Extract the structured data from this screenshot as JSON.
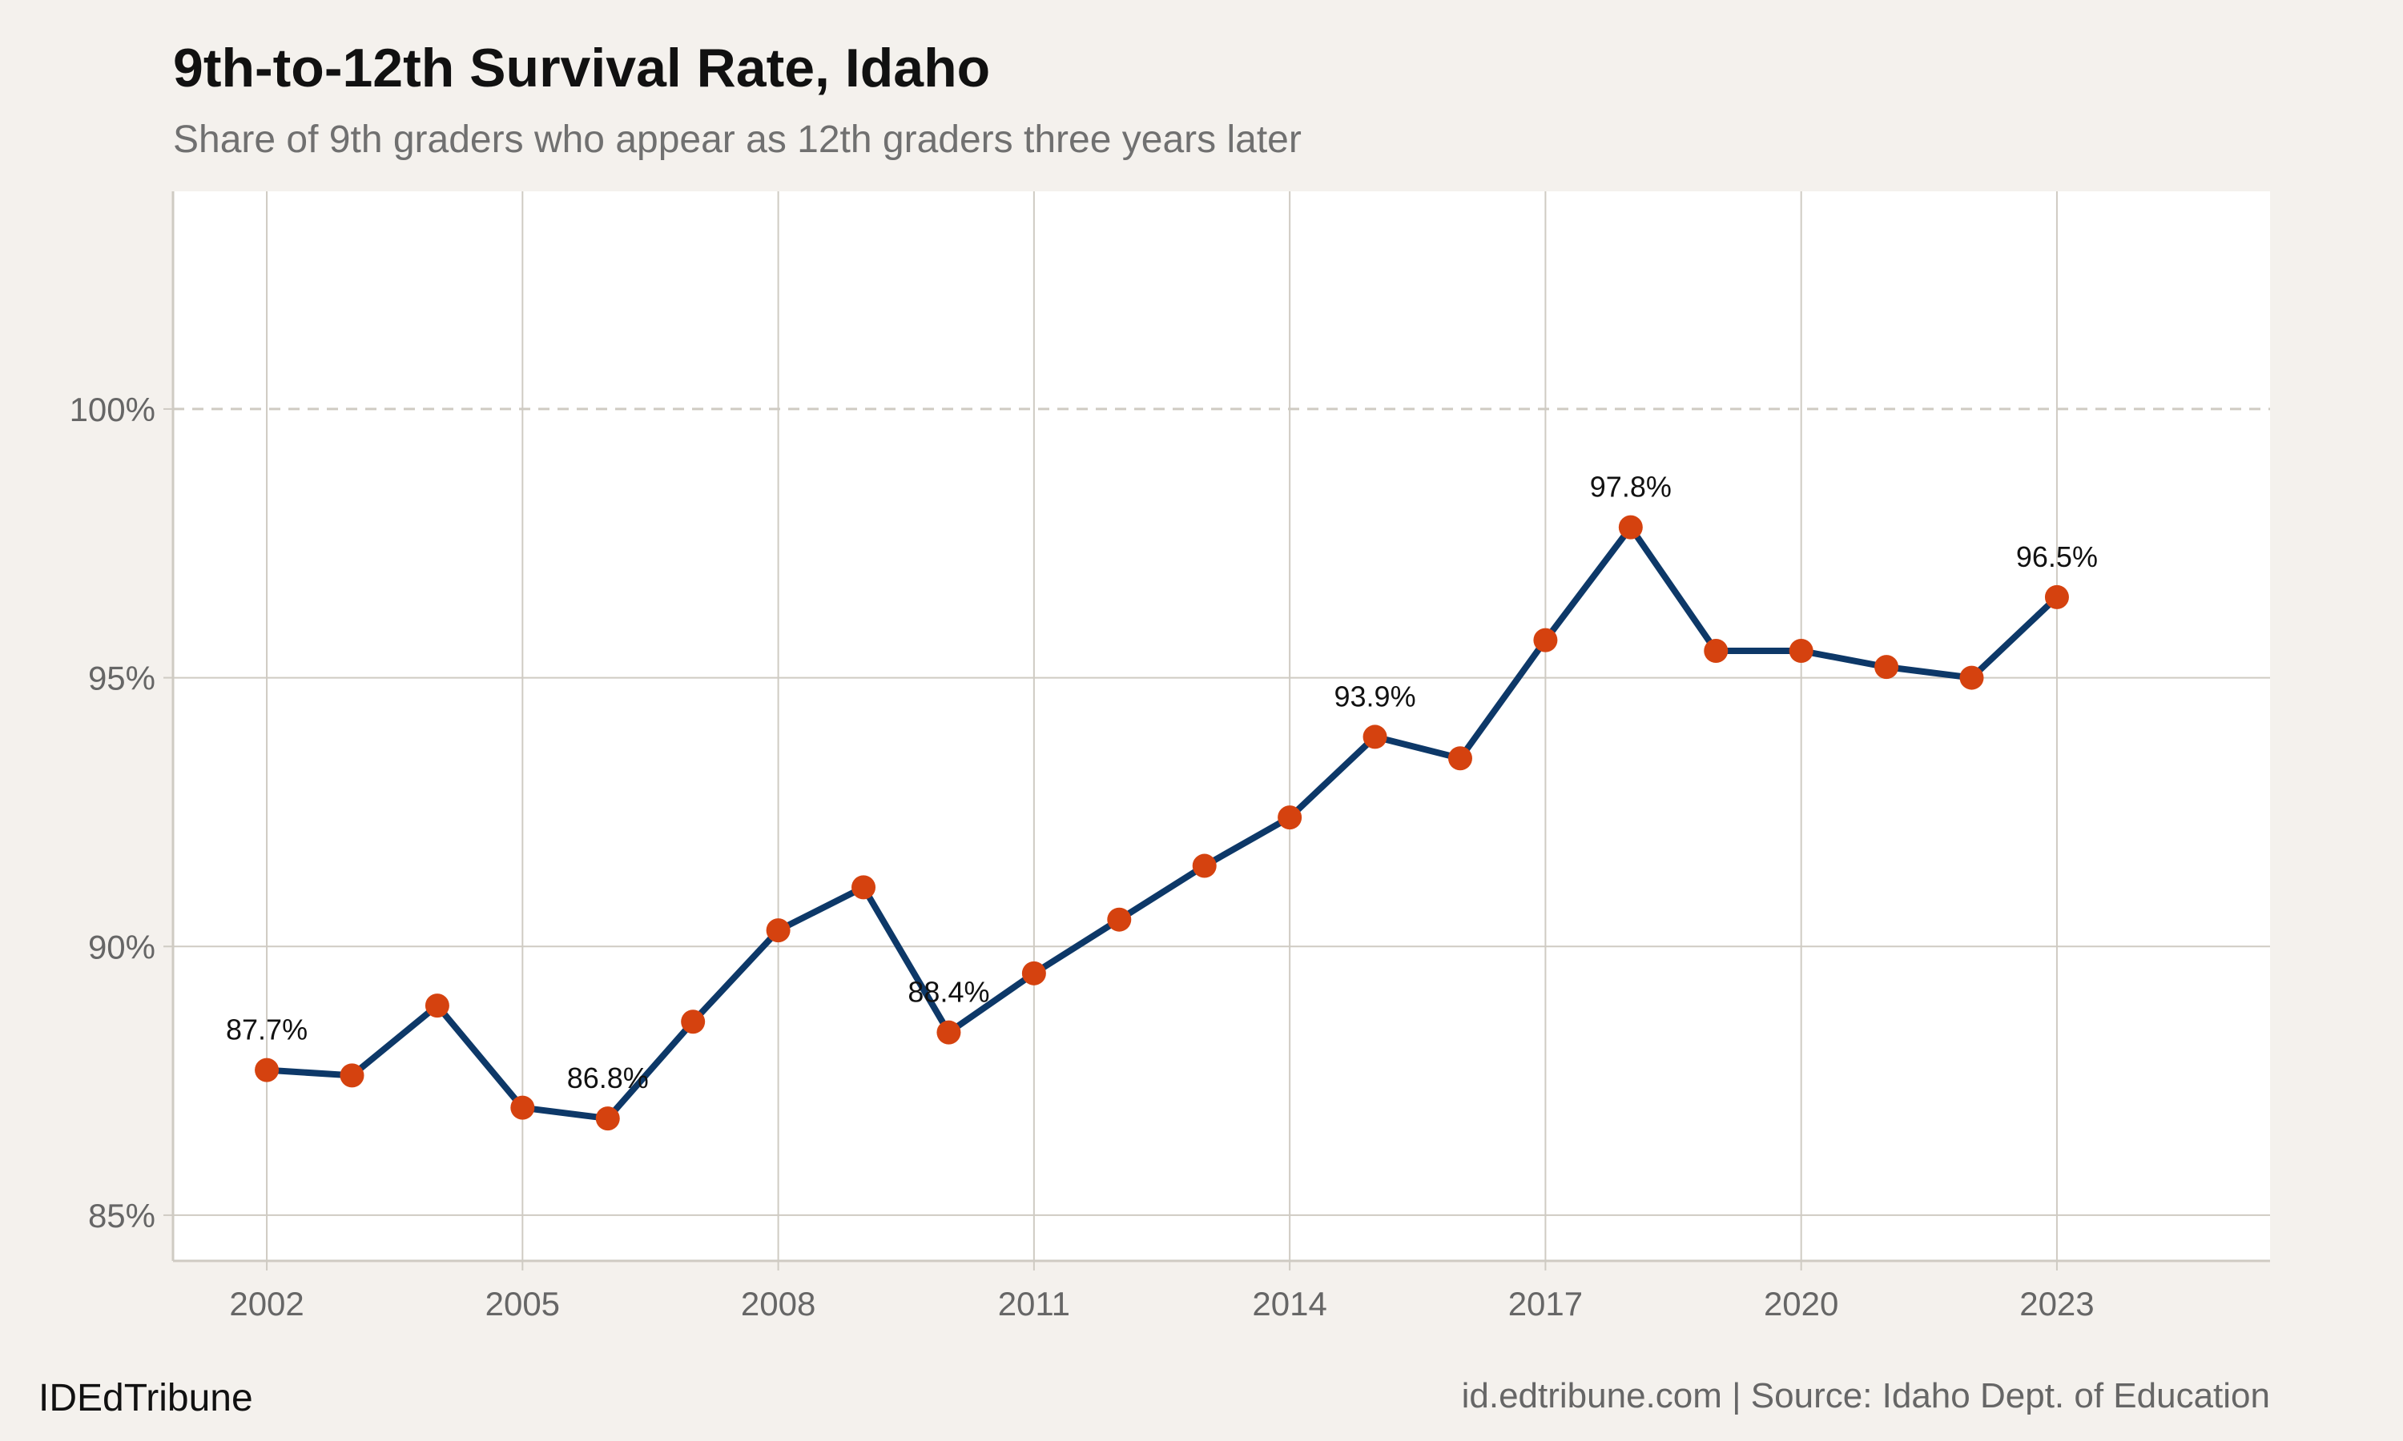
{
  "title": "9th-to-12th Survival Rate, Idaho",
  "subtitle": "Share of 9th graders who appear as 12th graders three years later",
  "footer": {
    "brand": "IDEdTribune",
    "source": "id.edtribune.com | Source: Idaho Dept. of Education"
  },
  "colors": {
    "background": "#f4f1ed",
    "panel": "#ffffff",
    "grid": "#cfcbc3",
    "line": "#0d3868",
    "points": "#d5420f"
  },
  "chart_data": {
    "type": "line",
    "title": "9th-to-12th Survival Rate, Idaho",
    "xlabel": "",
    "ylabel": "",
    "x": [
      2002,
      2003,
      2004,
      2005,
      2006,
      2007,
      2008,
      2009,
      2010,
      2011,
      2012,
      2013,
      2014,
      2015,
      2016,
      2017,
      2018,
      2019,
      2020,
      2021,
      2022,
      2023
    ],
    "values": [
      87.7,
      87.6,
      88.9,
      87.0,
      86.8,
      88.6,
      90.3,
      91.1,
      88.4,
      89.5,
      90.5,
      91.5,
      92.4,
      93.9,
      93.5,
      95.7,
      97.8,
      95.5,
      95.5,
      95.2,
      95.0,
      96.5
    ],
    "xlim": [
      2000.9,
      2025.5
    ],
    "ylim": [
      84.15,
      104.05
    ],
    "xticks": [
      "2002",
      "2005",
      "2008",
      "2011",
      "2014",
      "2017",
      "2020",
      "2023"
    ],
    "yticks": [
      "85%",
      "90%",
      "95%",
      "100%"
    ],
    "reference_line": {
      "y": 100,
      "style": "dashed"
    },
    "data_labels": [
      {
        "x": 2002,
        "text": "87.7%"
      },
      {
        "x": 2006,
        "text": "86.8%"
      },
      {
        "x": 2010,
        "text": "88.4%"
      },
      {
        "x": 2015,
        "text": "93.9%"
      },
      {
        "x": 2018,
        "text": "97.8%"
      },
      {
        "x": 2023,
        "text": "96.5%"
      }
    ],
    "grid": true,
    "legend": "none"
  }
}
